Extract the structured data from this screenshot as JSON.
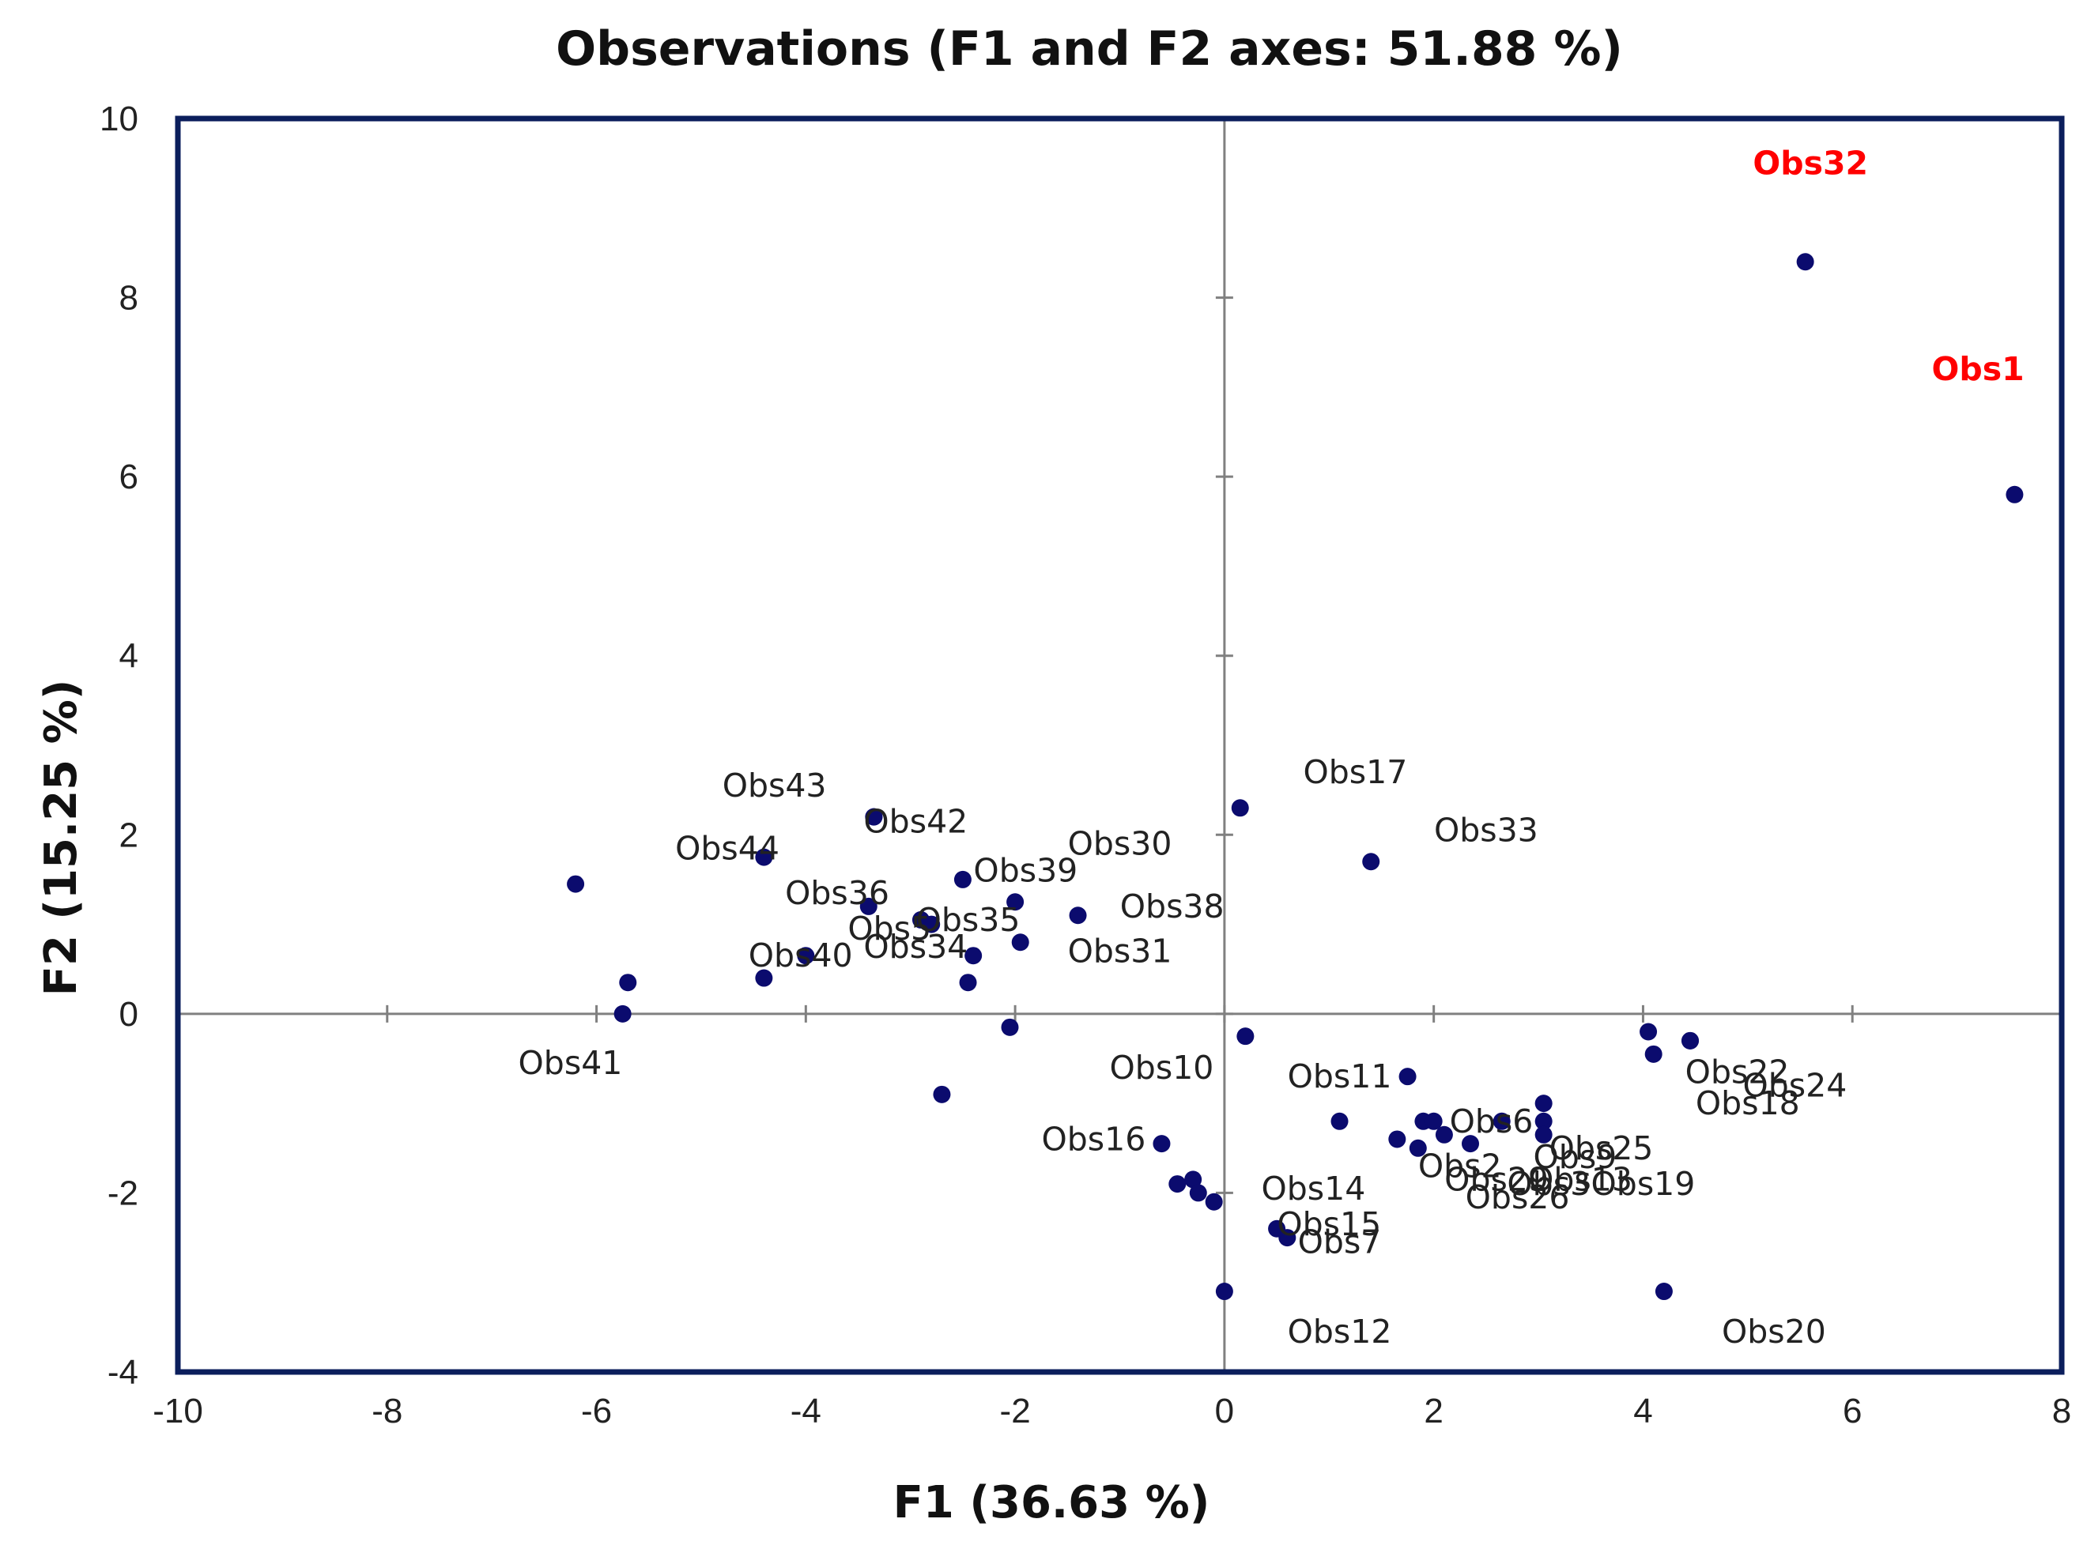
{
  "chart_data": {
    "type": "scatter",
    "title": "Observations (F1 and F2 axes: 51.88 %)",
    "xlabel": "F1 (36.63 %)",
    "ylabel": "F2 (15.25 %)",
    "xlim": [
      -10,
      8
    ],
    "ylim": [
      -4,
      10
    ],
    "xticks": [
      -10,
      -8,
      -6,
      -4,
      -2,
      0,
      2,
      4,
      6,
      8
    ],
    "yticks": [
      -4,
      -2,
      0,
      2,
      4,
      6,
      8,
      10
    ],
    "x_tick_labels": [
      "-10",
      "-8",
      "-6",
      "-4",
      "-2",
      "0",
      "2",
      "4",
      "6",
      "8"
    ],
    "y_tick_labels": [
      "-4",
      "-2",
      "0",
      "2",
      "4",
      "6",
      "8",
      "10"
    ],
    "colors": {
      "point": "#0b0b6e",
      "frame": "#0b1e5c",
      "axis": "#808080",
      "highlight": "#ff0000"
    },
    "points": [
      {
        "x": 5.55,
        "y": 8.4,
        "label": "Obs32",
        "highlight": true,
        "lx": 5.6,
        "ly": 9.5
      },
      {
        "x": 7.55,
        "y": 5.8,
        "label": "Obs1",
        "highlight": true,
        "lx": 7.2,
        "ly": 7.2
      },
      {
        "x": 0.15,
        "y": 2.3,
        "label": "Obs17",
        "lx": 1.25,
        "ly": 2.7
      },
      {
        "x": 1.4,
        "y": 1.7,
        "label": "Obs33",
        "lx": 2.5,
        "ly": 2.05
      },
      {
        "x": -3.35,
        "y": 2.2,
        "label": "Obs43",
        "lx": -4.3,
        "ly": 2.55
      },
      {
        "x": -3.35,
        "y": 2.2,
        "label": "Obs42",
        "lx": -2.95,
        "ly": 2.15
      },
      {
        "x": -4.4,
        "y": 1.75,
        "label": "Obs44",
        "lx": -4.75,
        "ly": 1.85
      },
      {
        "x": -6.2,
        "y": 1.45,
        "label": "",
        "lx": 0,
        "ly": 0
      },
      {
        "x": -5.7,
        "y": 0.35,
        "label": "",
        "lx": 0,
        "ly": 0
      },
      {
        "x": -5.75,
        "y": 0.0,
        "label": "Obs41",
        "lx": -6.25,
        "ly": -0.55
      },
      {
        "x": -3.4,
        "y": 1.2,
        "label": "Obs36",
        "lx": -3.7,
        "ly": 1.35
      },
      {
        "x": -4.4,
        "y": 0.4,
        "label": "Obs40",
        "lx": -4.05,
        "ly": 0.65
      },
      {
        "x": -4.0,
        "y": 0.65,
        "label": "",
        "lx": 0,
        "ly": 0
      },
      {
        "x": -2.9,
        "y": 1.05,
        "label": "Obs5",
        "lx": -3.2,
        "ly": 0.95
      },
      {
        "x": -2.8,
        "y": 1.0,
        "label": "Obs35",
        "lx": -2.45,
        "ly": 1.05
      },
      {
        "x": -2.4,
        "y": 0.65,
        "label": "Obs34",
        "lx": -2.95,
        "ly": 0.75
      },
      {
        "x": -2.45,
        "y": 0.35,
        "label": "",
        "lx": 0,
        "ly": 0
      },
      {
        "x": -2.5,
        "y": 1.5,
        "label": "Obs39",
        "lx": -1.9,
        "ly": 1.6
      },
      {
        "x": -2.0,
        "y": 1.25,
        "label": "",
        "lx": 0,
        "ly": 0
      },
      {
        "x": -1.95,
        "y": 0.8,
        "label": "Obs31",
        "lx": -1.0,
        "ly": 0.7
      },
      {
        "x": -1.4,
        "y": 1.1,
        "label": "Obs38",
        "lx": -0.5,
        "ly": 1.2
      },
      {
        "x": -2.05,
        "y": -0.15,
        "label": "Obs30",
        "lx": -1.0,
        "ly": 1.9
      },
      {
        "x": -2.7,
        "y": -0.9,
        "label": "",
        "lx": 0,
        "ly": 0
      },
      {
        "x": 0.2,
        "y": -0.25,
        "label": "Obs10",
        "lx": -0.6,
        "ly": -0.6
      },
      {
        "x": 1.75,
        "y": -0.7,
        "label": "Obs11",
        "lx": 1.1,
        "ly": -0.7
      },
      {
        "x": 1.1,
        "y": -1.2,
        "label": "Obs6",
        "lx": 2.55,
        "ly": -1.2
      },
      {
        "x": -0.6,
        "y": -1.45,
        "label": "Obs16",
        "lx": -1.25,
        "ly": -1.4
      },
      {
        "x": -0.45,
        "y": -1.9,
        "label": "",
        "lx": 0,
        "ly": 0
      },
      {
        "x": -0.3,
        "y": -1.85,
        "label": "",
        "lx": 0,
        "ly": 0
      },
      {
        "x": -0.25,
        "y": -2.0,
        "label": "",
        "lx": 0,
        "ly": 0
      },
      {
        "x": -0.1,
        "y": -2.1,
        "label": "Obs14",
        "lx": 0.85,
        "ly": -1.95
      },
      {
        "x": 0.0,
        "y": -3.1,
        "label": "Obs12",
        "lx": 1.1,
        "ly": -3.55
      },
      {
        "x": 0.5,
        "y": -2.4,
        "label": "Obs15",
        "lx": 1.0,
        "ly": -2.35
      },
      {
        "x": 0.6,
        "y": -2.5,
        "label": "Obs7",
        "lx": 1.1,
        "ly": -2.55
      },
      {
        "x": 1.65,
        "y": -1.4,
        "label": "",
        "lx": 0,
        "ly": 0
      },
      {
        "x": 1.85,
        "y": -1.5,
        "label": "Obs2",
        "lx": 2.25,
        "ly": -1.7
      },
      {
        "x": 1.9,
        "y": -1.2,
        "label": "",
        "lx": 0,
        "ly": 0
      },
      {
        "x": 2.0,
        "y": -1.2,
        "label": "",
        "lx": 0,
        "ly": 0
      },
      {
        "x": 2.1,
        "y": -1.35,
        "label": "Obs29",
        "lx": 2.6,
        "ly": -1.85
      },
      {
        "x": 2.35,
        "y": -1.45,
        "label": "Obs26",
        "lx": 2.8,
        "ly": -2.05
      },
      {
        "x": 2.65,
        "y": -1.2,
        "label": "Obs3",
        "lx": 3.1,
        "ly": -1.9
      },
      {
        "x": 3.05,
        "y": -1.0,
        "label": "Obs13",
        "lx": 3.4,
        "ly": -1.85
      },
      {
        "x": 3.05,
        "y": -1.2,
        "label": "Obs9",
        "lx": 3.35,
        "ly": -1.6
      },
      {
        "x": 3.05,
        "y": -1.35,
        "label": "Obs19",
        "lx": 4.0,
        "ly": -1.9
      },
      {
        "x": 4.05,
        "y": -0.2,
        "label": "Obs25",
        "lx": 3.6,
        "ly": -1.5
      },
      {
        "x": 4.1,
        "y": -0.45,
        "label": "Obs22",
        "lx": 4.9,
        "ly": -0.65
      },
      {
        "x": 4.45,
        "y": -0.3,
        "label": "Obs24",
        "lx": 5.45,
        "ly": -0.8
      },
      {
        "x": 4.45,
        "y": -0.3,
        "label": "Obs18",
        "lx": 5.0,
        "ly": -1.0
      },
      {
        "x": 4.2,
        "y": -3.1,
        "label": "Obs20",
        "lx": 5.25,
        "ly": -3.55
      }
    ]
  }
}
